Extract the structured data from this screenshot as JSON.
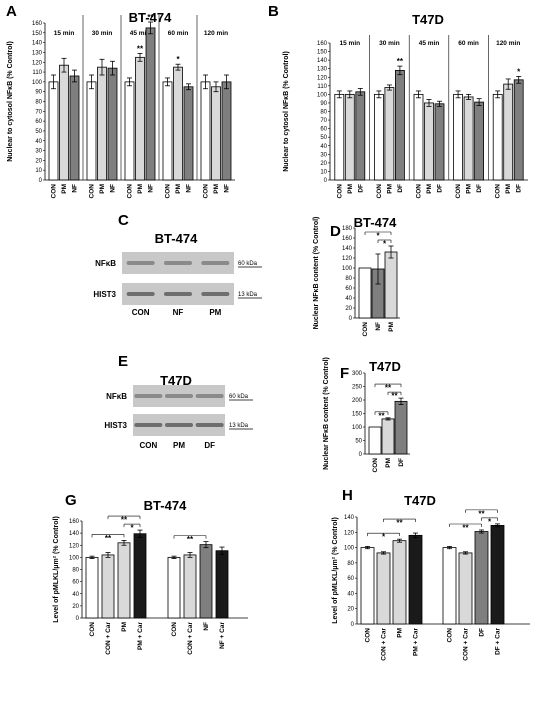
{
  "colors": {
    "CON": "#ffffff",
    "PM": "#d9d9d9",
    "NF": "#7f7f7f",
    "DF": "#7f7f7f",
    "CON + Car": "#d9d9d9",
    "PM + Car": "#1a1a1a",
    "NF + Car": "#1a1a1a",
    "DF + Car": "#1a1a1a",
    "stroke": "#000000"
  },
  "panels": {
    "A": {
      "label": "A",
      "title": "BT-474"
    },
    "B": {
      "label": "B",
      "title": "T47D"
    },
    "C": {
      "label": "C",
      "title": "BT-474",
      "bands": [
        "NFκB",
        "HIST3"
      ],
      "kda": [
        "60 kDa",
        "13 kDa"
      ],
      "lanes": [
        "CON",
        "NF",
        "PM"
      ]
    },
    "D": {
      "label": "D",
      "title": "BT-474"
    },
    "E": {
      "label": "E",
      "title": "T47D",
      "bands": [
        "NFκB",
        "HIST3"
      ],
      "kda": [
        "60 kDa",
        "13 kDa"
      ],
      "lanes": [
        "CON",
        "PM",
        "DF"
      ]
    },
    "F": {
      "label": "F",
      "title": "T47D"
    },
    "G": {
      "label": "G",
      "title": "BT-474"
    },
    "H": {
      "label": "H",
      "title": "T47D"
    }
  },
  "chart_data": [
    {
      "id": "A",
      "type": "bar",
      "title": "BT-474",
      "ylabel": "Nuclear to cytosol NFκB  (% Control)",
      "ylim": [
        0,
        160
      ],
      "yticks": [
        0,
        10,
        20,
        30,
        40,
        50,
        60,
        70,
        80,
        90,
        100,
        110,
        120,
        130,
        140,
        150,
        160
      ],
      "groups": [
        {
          "name": "15 min",
          "bars": [
            {
              "label": "CON",
              "value": 100,
              "err": 7
            },
            {
              "label": "PM",
              "value": 117,
              "err": 7
            },
            {
              "label": "NF",
              "value": 106,
              "err": 6
            }
          ]
        },
        {
          "name": "30 min",
          "bars": [
            {
              "label": "CON",
              "value": 100,
              "err": 7
            },
            {
              "label": "PM",
              "value": 115,
              "err": 8
            },
            {
              "label": "NF",
              "value": 114,
              "err": 7
            }
          ]
        },
        {
          "name": "45 min",
          "bars": [
            {
              "label": "CON",
              "value": 100,
              "err": 4
            },
            {
              "label": "PM",
              "value": 125,
              "err": 4,
              "sig": "**"
            },
            {
              "label": "NF",
              "value": 155,
              "err": 6,
              "sig": "**"
            }
          ]
        },
        {
          "name": "60 min",
          "bars": [
            {
              "label": "CON",
              "value": 100,
              "err": 4
            },
            {
              "label": "PM",
              "value": 115,
              "err": 3,
              "sig": "*"
            },
            {
              "label": "NF",
              "value": 95,
              "err": 3
            }
          ]
        },
        {
          "name": "120 min",
          "bars": [
            {
              "label": "CON",
              "value": 100,
              "err": 7
            },
            {
              "label": "PM",
              "value": 95,
              "err": 5
            },
            {
              "label": "NF",
              "value": 100,
              "err": 7
            }
          ]
        }
      ]
    },
    {
      "id": "B",
      "type": "bar",
      "title": "T47D",
      "ylabel": "Nuclear to cytosol NFκB  (% Control)",
      "ylim": [
        0,
        160
      ],
      "yticks": [
        0,
        10,
        20,
        30,
        40,
        50,
        60,
        70,
        80,
        90,
        100,
        110,
        120,
        130,
        140,
        150,
        160
      ],
      "groups": [
        {
          "name": "15 min",
          "bars": [
            {
              "label": "CON",
              "value": 100,
              "err": 4
            },
            {
              "label": "PM",
              "value": 100,
              "err": 4
            },
            {
              "label": "DF",
              "value": 103,
              "err": 4
            }
          ]
        },
        {
          "name": "30 min",
          "bars": [
            {
              "label": "CON",
              "value": 100,
              "err": 4
            },
            {
              "label": "PM",
              "value": 108,
              "err": 3
            },
            {
              "label": "DF",
              "value": 128,
              "err": 5,
              "sig": "**"
            }
          ]
        },
        {
          "name": "45 min",
          "bars": [
            {
              "label": "CON",
              "value": 100,
              "err": 4
            },
            {
              "label": "PM",
              "value": 90,
              "err": 4
            },
            {
              "label": "DF",
              "value": 89,
              "err": 3
            }
          ]
        },
        {
          "name": "60 min",
          "bars": [
            {
              "label": "CON",
              "value": 100,
              "err": 4
            },
            {
              "label": "PM",
              "value": 97,
              "err": 3
            },
            {
              "label": "DF",
              "value": 91,
              "err": 4
            }
          ]
        },
        {
          "name": "120 min",
          "bars": [
            {
              "label": "CON",
              "value": 100,
              "err": 4
            },
            {
              "label": "PM",
              "value": 112,
              "err": 6
            },
            {
              "label": "DF",
              "value": 117,
              "err": 4,
              "sig": "*"
            }
          ]
        }
      ]
    },
    {
      "id": "D",
      "type": "bar",
      "title": "BT-474",
      "ylabel": "Nuclear NFκB content (% Control)",
      "ylim": [
        0,
        180
      ],
      "yticks": [
        0,
        20,
        40,
        60,
        80,
        100,
        120,
        140,
        160,
        180
      ],
      "bars": [
        {
          "label": "CON",
          "value": 100,
          "err": 0
        },
        {
          "label": "NF",
          "value": 98,
          "err": 30
        },
        {
          "label": "PM",
          "value": 132,
          "err": 12
        }
      ],
      "brackets": [
        {
          "from": 1,
          "to": 2,
          "text": "*",
          "level": 0
        },
        {
          "from": 0,
          "to": 2,
          "text": "*",
          "level": 1
        }
      ]
    },
    {
      "id": "F",
      "type": "bar",
      "title": "T47D",
      "ylabel": "Nuclear NFκB content (% Control)",
      "ylim": [
        0,
        300
      ],
      "yticks": [
        0,
        50,
        100,
        150,
        200,
        250,
        300
      ],
      "bars": [
        {
          "label": "CON",
          "value": 100,
          "err": 0
        },
        {
          "label": "PM",
          "value": 130,
          "err": 4
        },
        {
          "label": "DF",
          "value": 195,
          "err": 12
        }
      ],
      "brackets": [
        {
          "from": 0,
          "to": 1,
          "text": "**",
          "level": 0
        },
        {
          "from": 1,
          "to": 2,
          "text": "**",
          "level": 0
        },
        {
          "from": 0,
          "to": 2,
          "text": "**",
          "level": 1
        }
      ]
    },
    {
      "id": "G",
      "type": "bar",
      "title": "BT-474",
      "ylabel": "Level of pMLKL/μm² (% Control)",
      "ylim": [
        0,
        160
      ],
      "yticks": [
        0,
        20,
        40,
        60,
        80,
        100,
        120,
        140,
        160
      ],
      "bars": [
        {
          "label": "CON",
          "value": 100,
          "err": 2
        },
        {
          "label": "CON + Car",
          "value": 104,
          "err": 4
        },
        {
          "label": "PM",
          "value": 124,
          "err": 4
        },
        {
          "label": "PM + Car",
          "value": 139,
          "err": 6
        },
        {
          "label": "CON",
          "value": 100,
          "err": 2
        },
        {
          "label": "CON + Car",
          "value": 104,
          "err": 4
        },
        {
          "label": "NF",
          "value": 121,
          "err": 5
        },
        {
          "label": "NF + Car",
          "value": 111,
          "err": 6
        }
      ],
      "brackets": [
        {
          "from": 0,
          "to": 2,
          "text": "**",
          "level": 0
        },
        {
          "from": 2,
          "to": 3,
          "text": "*",
          "level": 0
        },
        {
          "from": 1,
          "to": 3,
          "text": "**",
          "level": 1
        },
        {
          "from": 4,
          "to": 6,
          "text": "**",
          "level": 0
        }
      ]
    },
    {
      "id": "H",
      "type": "bar",
      "title": "T47D",
      "ylabel": "Level of pMLKL/μm² (% Control)",
      "ylim": [
        0,
        140
      ],
      "yticks": [
        0,
        20,
        40,
        60,
        80,
        100,
        120,
        140
      ],
      "bars": [
        {
          "label": "CON",
          "value": 100,
          "err": 1.5
        },
        {
          "label": "CON + Car",
          "value": 93,
          "err": 1.5
        },
        {
          "label": "PM",
          "value": 109,
          "err": 2
        },
        {
          "label": "PM + Car",
          "value": 116,
          "err": 3
        },
        {
          "label": "CON",
          "value": 100,
          "err": 1.5
        },
        {
          "label": "CON + Car",
          "value": 93,
          "err": 1.5
        },
        {
          "label": "DF",
          "value": 121,
          "err": 2
        },
        {
          "label": "DF + Car",
          "value": 129,
          "err": 2
        }
      ],
      "brackets": [
        {
          "from": 0,
          "to": 2,
          "text": "*",
          "level": 0
        },
        {
          "from": 1,
          "to": 3,
          "text": "**",
          "level": 1
        },
        {
          "from": 4,
          "to": 6,
          "text": "**",
          "level": 0
        },
        {
          "from": 6,
          "to": 7,
          "text": "*",
          "level": 0
        },
        {
          "from": 5,
          "to": 7,
          "text": "**",
          "level": 1
        }
      ]
    }
  ]
}
